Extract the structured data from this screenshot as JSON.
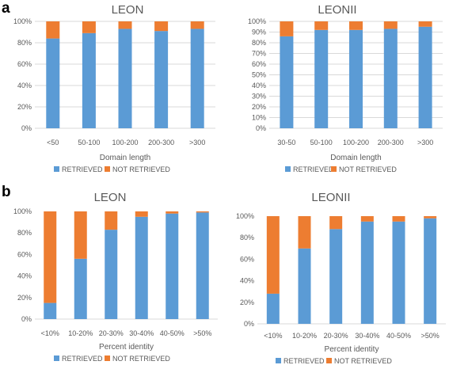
{
  "panels": [
    {
      "letter": "a"
    },
    {
      "letter": "b"
    }
  ],
  "colors": {
    "retrieved": "#5b9bd5",
    "not_retrieved": "#ed7d31",
    "grid": "#d9d9d9",
    "text": "#595959"
  },
  "chart_data": [
    {
      "type": "bar",
      "stacked": true,
      "title": "LEON",
      "xlabel": "Domain length",
      "ylabel": "",
      "ylim": [
        0,
        100
      ],
      "yticks": [
        "0%",
        "20%",
        "40%",
        "60%",
        "80%",
        "100%"
      ],
      "categories": [
        "<50",
        "50-100",
        "100-200",
        "200-300",
        ">300"
      ],
      "series": [
        {
          "name": "RETRIEVED",
          "values": [
            84,
            89,
            93,
            91,
            93
          ]
        },
        {
          "name": "NOT RETRIEVED",
          "values": [
            16,
            11,
            7,
            9,
            7
          ]
        }
      ],
      "legend": "bottom",
      "grid": true
    },
    {
      "type": "bar",
      "stacked": true,
      "title": "LEONII",
      "xlabel": "Domain length",
      "ylabel": "",
      "ylim": [
        0,
        100
      ],
      "yticks": [
        "0%",
        "10%",
        "20%",
        "30%",
        "40%",
        "50%",
        "60%",
        "70%",
        "80%",
        "90%",
        "100%"
      ],
      "categories": [
        "30-50",
        "50-100",
        "100-200",
        "200-300",
        ">300"
      ],
      "series": [
        {
          "name": "RETRIEVED",
          "values": [
            86,
            92,
            92,
            93,
            95
          ]
        },
        {
          "name": "NOT RETRIEVED",
          "values": [
            14,
            8,
            8,
            7,
            5
          ]
        }
      ],
      "legend": "bottom",
      "grid": true
    },
    {
      "type": "bar",
      "stacked": true,
      "title": "LEON",
      "xlabel": "Percent identity",
      "ylabel": "",
      "ylim": [
        0,
        100
      ],
      "yticks": [
        "0%",
        "20%",
        "40%",
        "60%",
        "80%",
        "100%"
      ],
      "categories": [
        "<10%",
        "10-20%",
        "20-30%",
        "30-40%",
        "40-50%",
        ">50%"
      ],
      "series": [
        {
          "name": "RETRIEVED",
          "values": [
            15,
            56,
            83,
            95,
            98,
            99
          ]
        },
        {
          "name": "NOT RETRIEVED",
          "values": [
            85,
            44,
            17,
            5,
            2,
            1
          ]
        }
      ],
      "legend": "bottom",
      "grid": false
    },
    {
      "type": "bar",
      "stacked": true,
      "title": "LEONII",
      "xlabel": "Percent identity",
      "ylabel": "",
      "ylim": [
        0,
        100
      ],
      "yticks": [
        "0%",
        "20%",
        "40%",
        "60%",
        "80%",
        "100%"
      ],
      "categories": [
        "<10%",
        "10-20%",
        "20-30%",
        "30-40%",
        "40-50%",
        ">50%"
      ],
      "series": [
        {
          "name": "RETRIEVED",
          "values": [
            28,
            70,
            88,
            95,
            95,
            98
          ]
        },
        {
          "name": "NOT RETRIEVED",
          "values": [
            72,
            30,
            12,
            5,
            5,
            2
          ]
        }
      ],
      "legend": "bottom",
      "grid": false
    }
  ]
}
